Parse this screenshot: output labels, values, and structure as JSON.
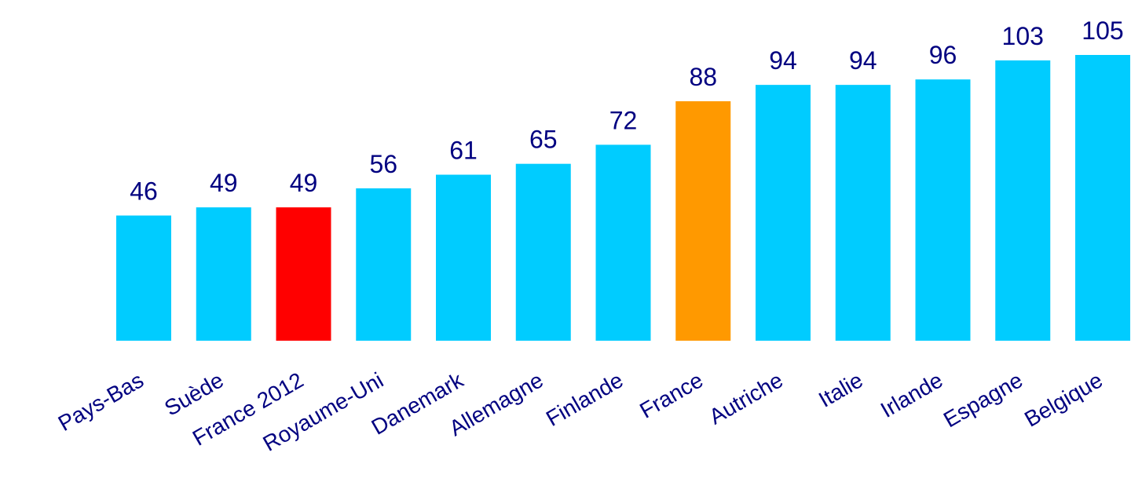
{
  "chart_data": {
    "type": "bar",
    "categories": [
      "Pays-Bas",
      "Suède",
      "France 2012",
      "Royaume-Uni",
      "Danemark",
      "Allemagne",
      "Finlande",
      "France",
      "Autriche",
      "Italie",
      "Irlande",
      "Espagne",
      "Belgique"
    ],
    "values": [
      46,
      49,
      49,
      56,
      61,
      65,
      72,
      88,
      94,
      94,
      96,
      103,
      105
    ],
    "colors": [
      "#00ccff",
      "#00ccff",
      "#ff0000",
      "#00ccff",
      "#00ccff",
      "#00ccff",
      "#00ccff",
      "#ff9900",
      "#00ccff",
      "#00ccff",
      "#00ccff",
      "#00ccff",
      "#00ccff"
    ]
  }
}
